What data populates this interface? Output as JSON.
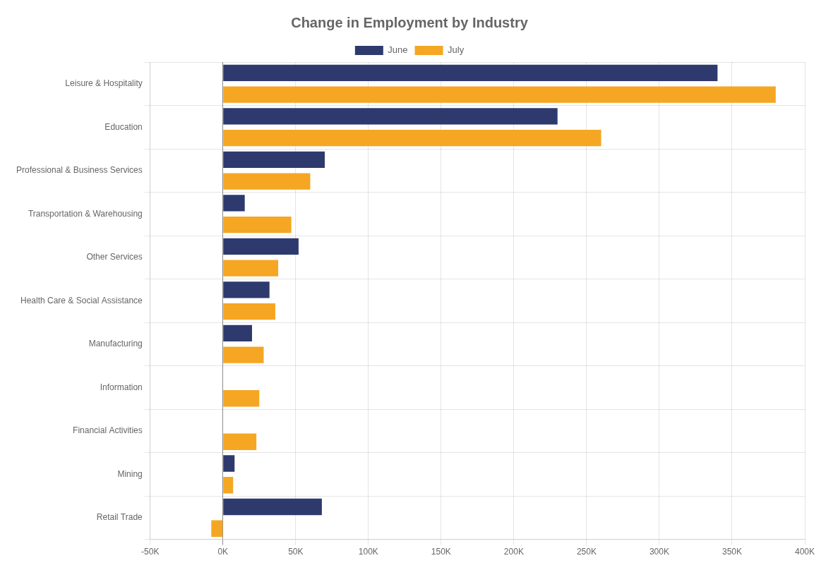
{
  "chart_data": {
    "type": "bar",
    "orientation": "horizontal",
    "title": "Change in Employment by Industry",
    "categories": [
      "Leisure & Hospitality",
      "Education",
      "Professional & Business Services",
      "Transportation & Warehousing",
      "Other Services",
      "Health Care & Social Assistance",
      "Manufacturing",
      "Information",
      "Financial Activities",
      "Mining",
      "Retail Trade"
    ],
    "series": [
      {
        "name": "June",
        "color": "#2e3a6e",
        "values": [
          340000,
          230000,
          70000,
          15000,
          52000,
          32000,
          20000,
          0,
          0,
          8000,
          68000
        ]
      },
      {
        "name": "July",
        "color": "#f5a623",
        "values": [
          380000,
          260000,
          60000,
          47000,
          38000,
          36000,
          28000,
          25000,
          23000,
          7000,
          -8000
        ]
      }
    ],
    "xlim": [
      -50000,
      400000
    ],
    "xticks": [
      {
        "value": -50000,
        "label": "-50K"
      },
      {
        "value": 0,
        "label": "0K"
      },
      {
        "value": 50000,
        "label": "50K"
      },
      {
        "value": 100000,
        "label": "100K"
      },
      {
        "value": 150000,
        "label": "150K"
      },
      {
        "value": 200000,
        "label": "200K"
      },
      {
        "value": 250000,
        "label": "250K"
      },
      {
        "value": 300000,
        "label": "300K"
      },
      {
        "value": 350000,
        "label": "350K"
      },
      {
        "value": 400000,
        "label": "400K"
      }
    ],
    "grid": true,
    "legend": "top"
  }
}
